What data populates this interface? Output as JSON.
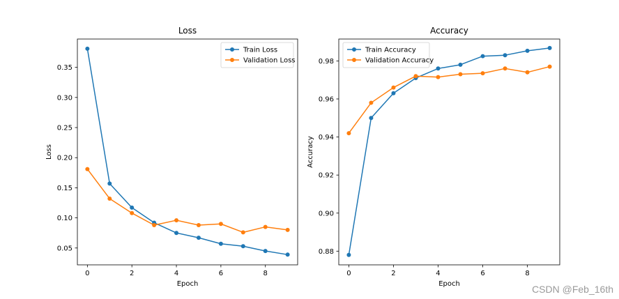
{
  "chart_data": [
    {
      "type": "line",
      "title": "Loss",
      "xlabel": "Epoch",
      "ylabel": "Loss",
      "xlim": [
        -0.45,
        9.45
      ],
      "ylim": [
        0.022,
        0.397
      ],
      "xticks": [
        0,
        2,
        4,
        6,
        8
      ],
      "yticks": [
        0.05,
        0.1,
        0.15,
        0.2,
        0.25,
        0.3,
        0.35
      ],
      "ytick_labels": [
        "0.05",
        "0.10",
        "0.15",
        "0.20",
        "0.25",
        "0.30",
        "0.35"
      ],
      "grid": false,
      "legend_position": "top-right",
      "x": [
        0,
        1,
        2,
        3,
        4,
        5,
        6,
        7,
        8,
        9
      ],
      "series": [
        {
          "name": "Train Loss",
          "color": "#1f77b4",
          "values": [
            0.381,
            0.157,
            0.117,
            0.092,
            0.075,
            0.067,
            0.057,
            0.053,
            0.045,
            0.039
          ]
        },
        {
          "name": "Validation Loss",
          "color": "#ff7f0e",
          "values": [
            0.181,
            0.132,
            0.108,
            0.088,
            0.096,
            0.088,
            0.09,
            0.076,
            0.085,
            0.08
          ]
        }
      ]
    },
    {
      "type": "line",
      "title": "Accuracy",
      "xlabel": "Epoch",
      "ylabel": "Accuracy",
      "xlim": [
        -0.45,
        9.45
      ],
      "ylim": [
        0.8728,
        0.9915
      ],
      "xticks": [
        0,
        2,
        4,
        6,
        8
      ],
      "yticks": [
        0.88,
        0.9,
        0.92,
        0.94,
        0.96,
        0.98
      ],
      "ytick_labels": [
        "0.88",
        "0.90",
        "0.92",
        "0.94",
        "0.96",
        "0.98"
      ],
      "grid": false,
      "legend_position": "top-left",
      "x": [
        0,
        1,
        2,
        3,
        4,
        5,
        6,
        7,
        8,
        9
      ],
      "series": [
        {
          "name": "Train Accuracy",
          "color": "#1f77b4",
          "values": [
            0.878,
            0.95,
            0.963,
            0.971,
            0.976,
            0.978,
            0.9825,
            0.983,
            0.9853,
            0.9868
          ]
        },
        {
          "name": "Validation Accuracy",
          "color": "#ff7f0e",
          "values": [
            0.942,
            0.958,
            0.966,
            0.972,
            0.9715,
            0.973,
            0.9735,
            0.976,
            0.974,
            0.977
          ]
        }
      ]
    }
  ],
  "watermark": "CSDN @Feb_16th"
}
